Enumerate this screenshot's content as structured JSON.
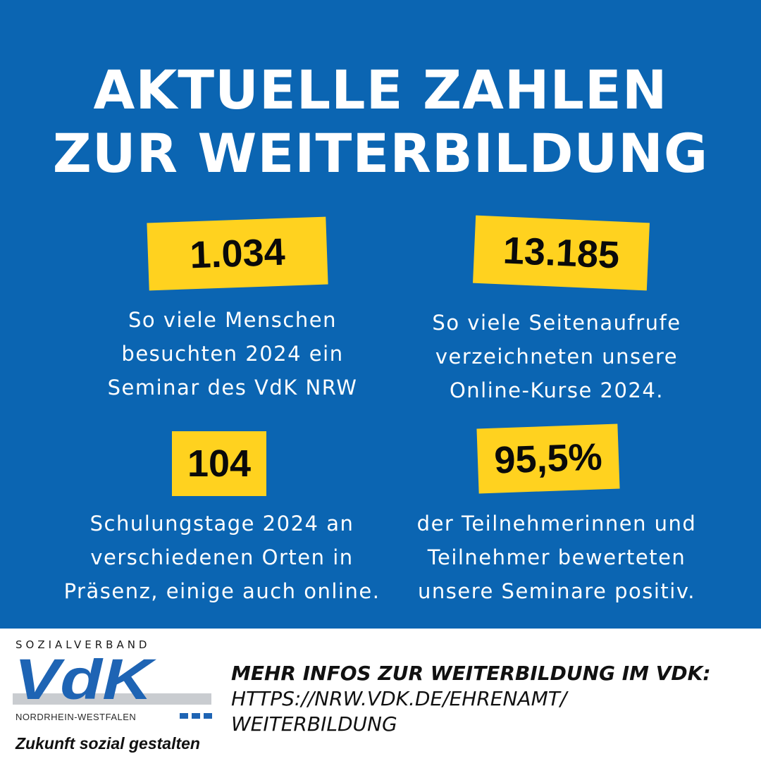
{
  "header": {
    "title_line1": "AKTUELLE ZAHLEN",
    "title_line2": "ZUR WEITERBILDUNG"
  },
  "stats": [
    {
      "value": "1.034",
      "description": [
        "So viele Menschen",
        "besuchten 2024 ein",
        "Seminar des VdK NRW"
      ]
    },
    {
      "value": "13.185",
      "description": [
        "So viele Seitenaufrufe",
        "verzeichneten unsere",
        "Online-Kurse 2024."
      ]
    },
    {
      "value": "104",
      "description": [
        "Schulungstage 2024 an",
        "verschiedenen Orten in",
        "Präsenz, einige auch online."
      ]
    },
    {
      "value": "95,5%",
      "description": [
        "der Teilnehmerinnen und",
        "Teilnehmer bewerteten",
        "unsere Seminare positiv."
      ]
    }
  ],
  "footer": {
    "logo": {
      "brand_top": "SOZIALVERBAND",
      "mark_text": "VdK",
      "region": "NORDRHEIN-WESTFALEN",
      "slogan": "Zukunft sozial gestalten"
    },
    "info_title": "MEHR INFOS ZUR WEITERBILDUNG IM VDK:",
    "info_url_line1": "HTTPS://NRW.VDK.DE/EHRENAMT/",
    "info_url_line2": "WEITERBILDUNG"
  },
  "colors": {
    "panel_blue": "#0b65b2",
    "badge_yellow": "#ffd21f",
    "logo_blue": "#1e64b4"
  }
}
